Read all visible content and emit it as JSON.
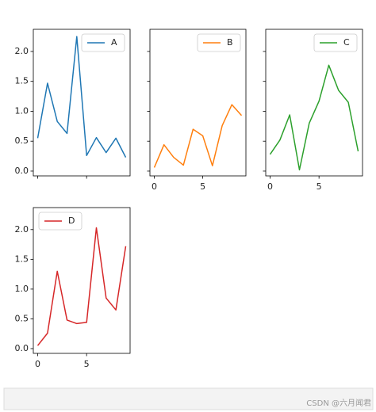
{
  "chart_data": [
    {
      "type": "line",
      "x": [
        0,
        1,
        2,
        3,
        4,
        5,
        6,
        7,
        8,
        9
      ],
      "series": [
        {
          "name": "A",
          "color": "#1f77b4",
          "values": [
            0.55,
            1.47,
            0.83,
            0.63,
            2.25,
            0.26,
            0.56,
            0.31,
            0.55,
            0.23
          ]
        }
      ],
      "xlim": [
        -0.45,
        9.45
      ],
      "xticks": [
        0,
        5
      ],
      "x_tick_labels": false,
      "ylim": [
        -0.08,
        2.37
      ],
      "yticks": [
        {
          "value": 0,
          "label": "0.0"
        },
        {
          "value": 0.5,
          "label": "0.5"
        },
        {
          "value": 1,
          "label": "1.0"
        },
        {
          "value": 1.5,
          "label": "1.5"
        },
        {
          "value": 2,
          "label": "2.0"
        }
      ],
      "y_tick_labels": true,
      "legend": "upper right"
    },
    {
      "type": "line",
      "x": [
        0,
        1,
        2,
        3,
        4,
        5,
        6,
        7,
        8,
        9
      ],
      "series": [
        {
          "name": "B",
          "color": "#ff7f0e",
          "values": [
            0.06,
            0.44,
            0.23,
            0.1,
            0.7,
            0.59,
            0.09,
            0.76,
            1.11,
            0.93
          ]
        }
      ],
      "xlim": [
        -0.45,
        9.45
      ],
      "xticks": [
        0,
        5
      ],
      "x_tick_labels": true,
      "ylim": [
        -0.08,
        2.37
      ],
      "yticks": [
        0,
        0.5,
        1,
        1.5,
        2
      ],
      "y_tick_labels": false,
      "legend": "upper right"
    },
    {
      "type": "line",
      "x": [
        0,
        1,
        2,
        3,
        4,
        5,
        6,
        7,
        8,
        9
      ],
      "series": [
        {
          "name": "C",
          "color": "#2ca02c",
          "values": [
            0.28,
            0.52,
            0.94,
            0.02,
            0.8,
            1.17,
            1.77,
            1.35,
            1.15,
            0.33
          ]
        }
      ],
      "xlim": [
        -0.45,
        9.45
      ],
      "xticks": [
        0,
        5
      ],
      "x_tick_labels": true,
      "ylim": [
        -0.08,
        2.37
      ],
      "yticks": [
        0,
        0.5,
        1,
        1.5,
        2
      ],
      "y_tick_labels": false,
      "legend": "upper right"
    },
    {
      "type": "line",
      "x": [
        0,
        1,
        2,
        3,
        4,
        5,
        6,
        7,
        8,
        9
      ],
      "series": [
        {
          "name": "D",
          "color": "#d62728",
          "values": [
            0.05,
            0.26,
            1.3,
            0.48,
            0.42,
            0.44,
            2.03,
            0.85,
            0.65,
            1.72
          ]
        }
      ],
      "xlim": [
        -0.45,
        9.45
      ],
      "xticks": [
        0,
        5
      ],
      "x_tick_labels": true,
      "ylim": [
        -0.08,
        2.37
      ],
      "yticks": [
        {
          "value": 0,
          "label": "0.0"
        },
        {
          "value": 0.5,
          "label": "0.5"
        },
        {
          "value": 1,
          "label": "1.0"
        },
        {
          "value": 1.5,
          "label": "1.5"
        },
        {
          "value": 2,
          "label": "2.0"
        }
      ],
      "y_tick_labels": true,
      "legend": "upper left"
    }
  ],
  "watermark": "CSDN @六月闻君"
}
